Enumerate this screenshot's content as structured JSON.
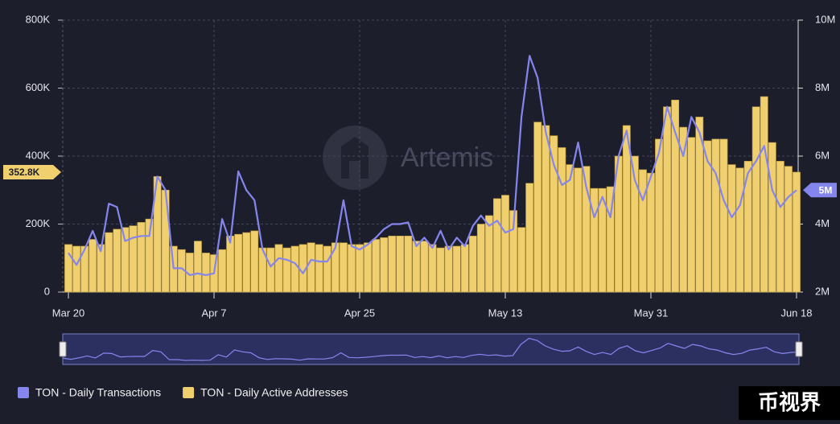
{
  "chart_data": {
    "type": "bar_line",
    "watermark": "Artemis",
    "corner_text": "币视界",
    "categories": [
      "Mar 20",
      null,
      null,
      null,
      null,
      null,
      null,
      null,
      null,
      null,
      null,
      null,
      null,
      null,
      null,
      null,
      null,
      null,
      "Apr 7",
      null,
      null,
      null,
      null,
      null,
      null,
      null,
      null,
      null,
      null,
      null,
      null,
      null,
      null,
      null,
      null,
      null,
      "Apr 25",
      null,
      null,
      null,
      null,
      null,
      null,
      null,
      null,
      null,
      null,
      null,
      null,
      null,
      null,
      null,
      null,
      null,
      "May 13",
      null,
      null,
      null,
      null,
      null,
      null,
      null,
      null,
      null,
      null,
      null,
      null,
      null,
      null,
      null,
      null,
      null,
      "May 31",
      null,
      null,
      null,
      null,
      null,
      null,
      null,
      null,
      null,
      null,
      null,
      null,
      null,
      null,
      null,
      null,
      null,
      "Jun 18"
    ],
    "series": [
      {
        "name": "TON - Daily Active Addresses",
        "color": "#f0cf6e",
        "axis": "y",
        "values": [
          140000,
          135000,
          135000,
          155000,
          140000,
          175000,
          185000,
          190000,
          195000,
          205000,
          215000,
          340000,
          300000,
          135000,
          125000,
          115000,
          150000,
          115000,
          110000,
          125000,
          165000,
          170000,
          175000,
          180000,
          130000,
          130000,
          140000,
          130000,
          135000,
          140000,
          145000,
          140000,
          135000,
          145000,
          145000,
          140000,
          140000,
          145000,
          155000,
          160000,
          165000,
          165000,
          165000,
          150000,
          150000,
          140000,
          130000,
          135000,
          135000,
          140000,
          165000,
          200000,
          225000,
          275000,
          285000,
          240000,
          190000,
          320000,
          500000,
          490000,
          460000,
          425000,
          375000,
          365000,
          370000,
          305000,
          305000,
          310000,
          400000,
          490000,
          400000,
          360000,
          350000,
          450000,
          545000,
          565000,
          485000,
          455000,
          515000,
          445000,
          450000,
          450000,
          375000,
          365000,
          385000,
          545000,
          575000,
          440000,
          385000,
          370000,
          352800
        ]
      },
      {
        "name": "TON - Daily Transactions",
        "color": "#8585ee",
        "axis": "y2",
        "values": [
          3150000,
          2800000,
          3250000,
          3800000,
          3200000,
          4600000,
          4500000,
          3500000,
          3600000,
          3650000,
          3650000,
          5400000,
          5000000,
          2700000,
          2700000,
          2500000,
          2550000,
          2500000,
          2550000,
          4150000,
          3450000,
          5550000,
          5000000,
          4700000,
          3250000,
          2750000,
          3000000,
          2950000,
          2850000,
          2550000,
          2950000,
          2900000,
          2900000,
          3300000,
          4700000,
          3350000,
          3250000,
          3400000,
          3600000,
          3850000,
          4000000,
          4000000,
          4050000,
          3350000,
          3600000,
          3300000,
          3800000,
          3250000,
          3600000,
          3350000,
          3950000,
          4250000,
          3950000,
          4100000,
          3750000,
          3850000,
          7150000,
          8950000,
          8300000,
          6700000,
          5750000,
          5150000,
          5300000,
          6400000,
          5100000,
          4200000,
          4800000,
          4200000,
          6000000,
          6750000,
          5300000,
          4700000,
          5400000,
          6100000,
          7450000,
          6700000,
          6000000,
          7150000,
          6700000,
          5850000,
          5500000,
          4700000,
          4200000,
          4550000,
          5500000,
          5850000,
          6300000,
          5000000,
          4500000,
          4800000,
          5000000
        ]
      }
    ],
    "ylim": [
      0,
      800000
    ],
    "yticks": [
      {
        "value": 0,
        "label": "0"
      },
      {
        "value": 200000,
        "label": "200K"
      },
      {
        "value": 400000,
        "label": "400K"
      },
      {
        "value": 600000,
        "label": "600K"
      },
      {
        "value": 800000,
        "label": "800K"
      }
    ],
    "y2lim": [
      2000000,
      10000000
    ],
    "y2ticks": [
      {
        "value": 2000000,
        "label": "2M"
      },
      {
        "value": 4000000,
        "label": "4M"
      },
      {
        "value": 6000000,
        "label": "6M"
      },
      {
        "value": 8000000,
        "label": "8M"
      },
      {
        "value": 10000000,
        "label": "10M"
      }
    ],
    "annotations": [
      {
        "axis": "y",
        "value": 352800,
        "label": "352.8K",
        "color": "#f0cf6e"
      },
      {
        "axis": "y2",
        "value": 5000000,
        "label": "5M",
        "color": "#8585ee"
      }
    ],
    "grid": true
  }
}
